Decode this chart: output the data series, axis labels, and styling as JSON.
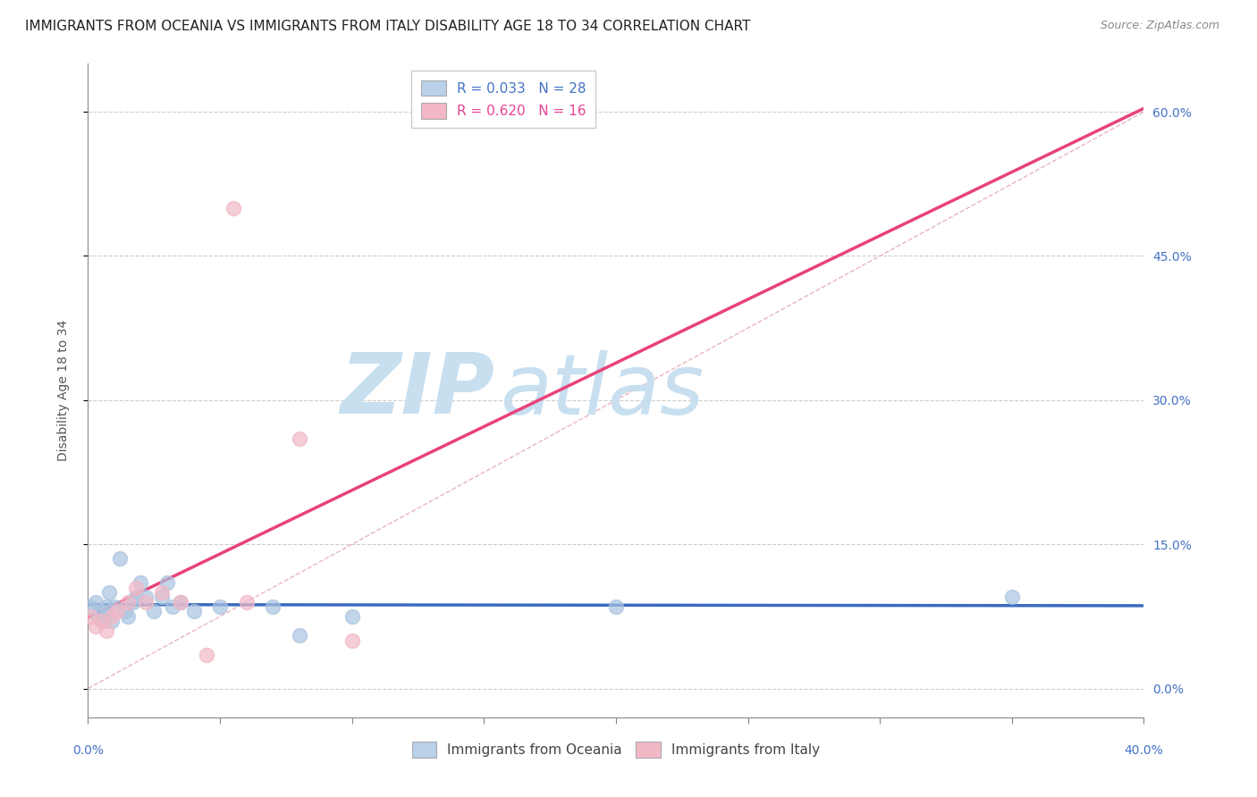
{
  "title": "IMMIGRANTS FROM OCEANIA VS IMMIGRANTS FROM ITALY DISABILITY AGE 18 TO 34 CORRELATION CHART",
  "source": "Source: ZipAtlas.com",
  "ylabel": "Disability Age 18 to 34",
  "ytick_values": [
    0.0,
    15.0,
    30.0,
    45.0,
    60.0
  ],
  "xlim": [
    0.0,
    40.0
  ],
  "ylim": [
    -3.0,
    65.0
  ],
  "oceania_R": 0.033,
  "oceania_N": 28,
  "italy_R": 0.62,
  "italy_N": 16,
  "oceania_color": "#aac4e0",
  "italy_color": "#f2b8c6",
  "oceania_line_color": "#3a6bbf",
  "italy_line_color": "#e8427a",
  "diagonal_color": "#e8b4c0",
  "watermark_zip_color": "#c8dff0",
  "watermark_atlas_color": "#c8dff0",
  "legend_box_oceania": "#b8d0e8",
  "legend_box_italy": "#f2b8c6",
  "oceania_color_text": "#4472c4",
  "italy_color_text": "#e84393",
  "axis_color": "#4472c4",
  "title_color": "#222222",
  "source_color": "#888888",
  "ylabel_color": "#555555",
  "oceania_x": [
    0.1,
    0.3,
    0.4,
    0.5,
    0.6,
    0.7,
    0.8,
    0.9,
    1.0,
    1.2,
    1.4,
    1.5,
    1.7,
    1.8,
    2.0,
    2.2,
    2.5,
    2.8,
    3.0,
    3.2,
    3.5,
    4.0,
    5.0,
    7.0,
    8.0,
    10.0,
    20.0,
    35.0
  ],
  "oceania_y": [
    8.5,
    9.0,
    7.5,
    8.0,
    7.0,
    8.5,
    10.0,
    7.0,
    8.5,
    13.5,
    8.0,
    7.5,
    9.0,
    9.5,
    11.0,
    9.5,
    8.0,
    9.5,
    11.0,
    8.5,
    9.0,
    8.0,
    8.5,
    8.5,
    5.5,
    7.5,
    8.5,
    9.5
  ],
  "italy_x": [
    0.1,
    0.3,
    0.5,
    0.7,
    0.9,
    1.1,
    1.5,
    1.8,
    2.2,
    2.8,
    3.5,
    4.5,
    6.0,
    8.0,
    10.0,
    5.5
  ],
  "italy_y": [
    7.5,
    6.5,
    7.0,
    6.0,
    7.5,
    8.0,
    9.0,
    10.5,
    9.0,
    10.0,
    9.0,
    3.5,
    9.0,
    26.0,
    5.0,
    50.0
  ],
  "title_fontsize": 11,
  "source_fontsize": 9,
  "axis_label_fontsize": 10,
  "tick_fontsize": 10,
  "legend_fontsize": 11,
  "marker_size": 130,
  "marker_linewidth": 1.2
}
